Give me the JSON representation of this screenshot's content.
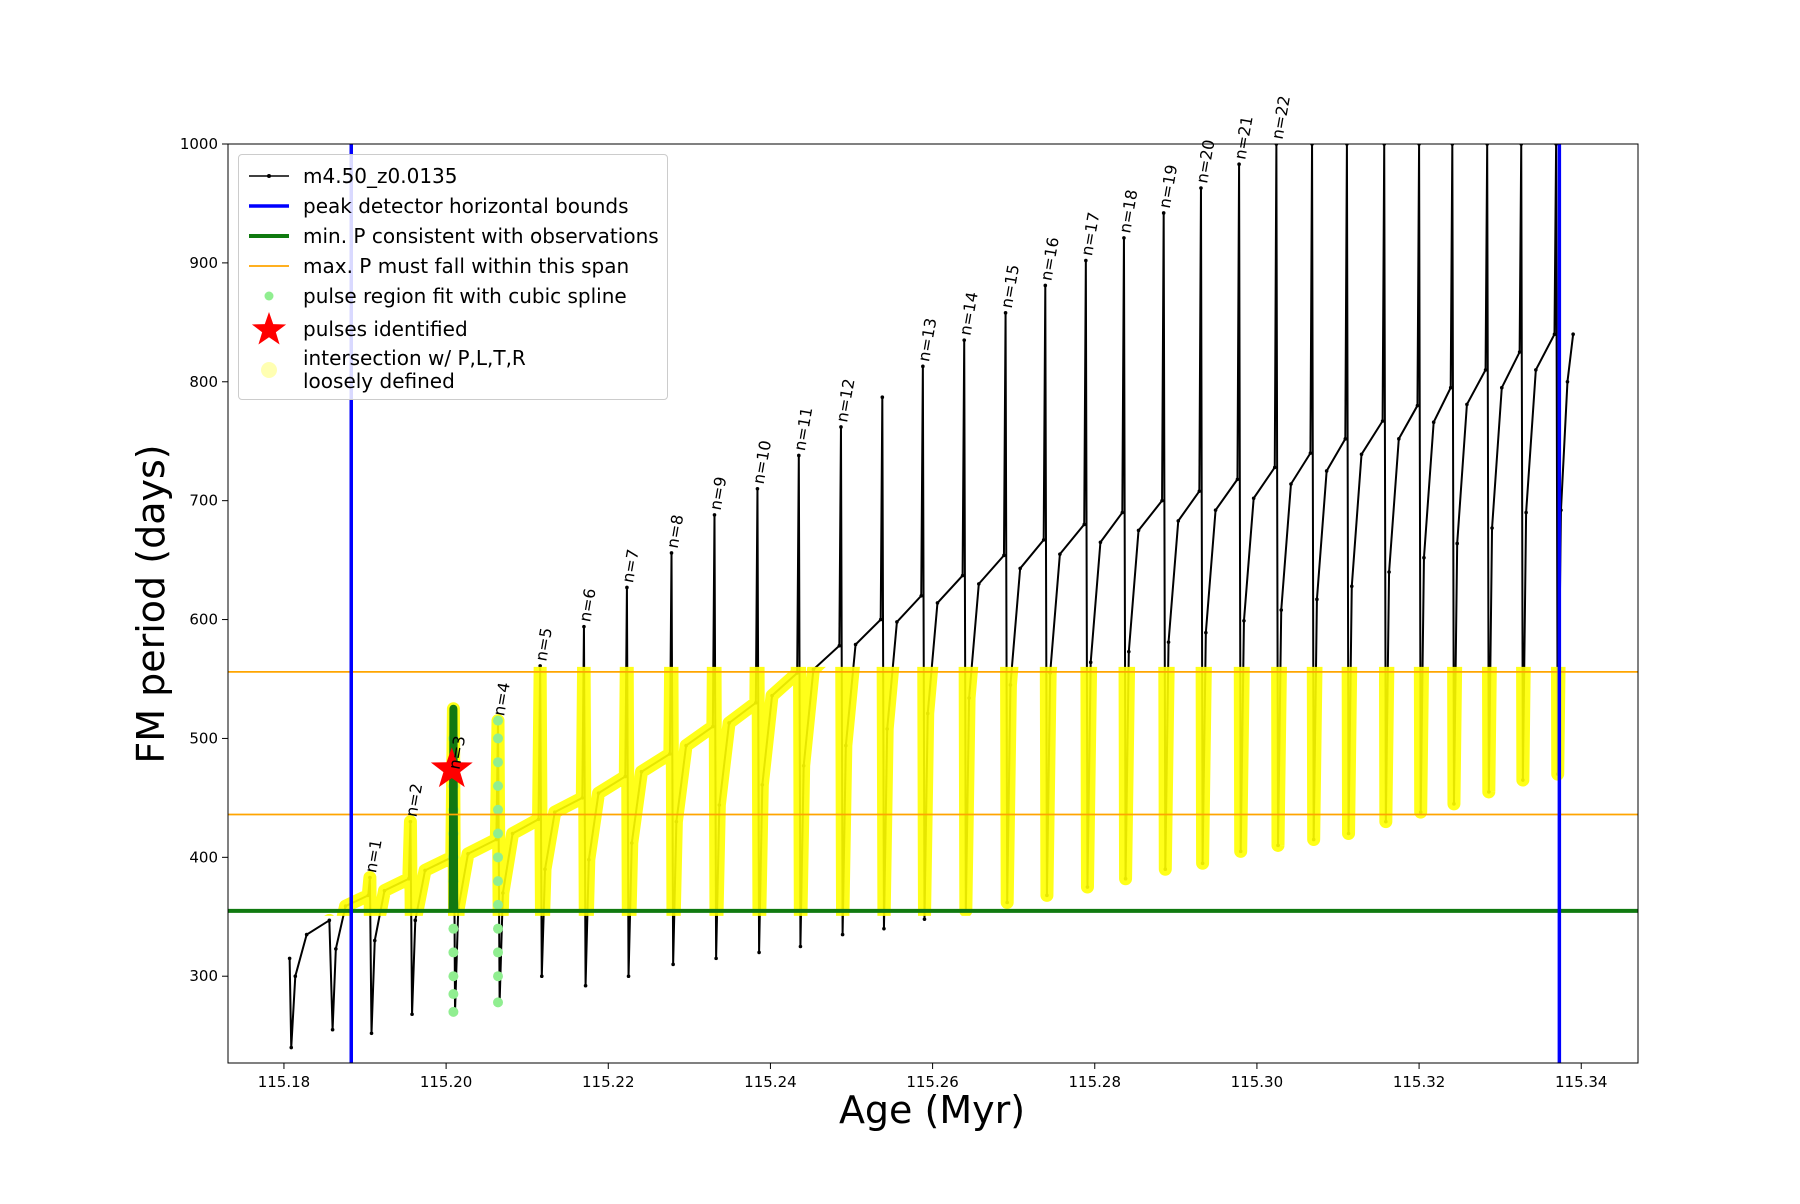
{
  "chart_data": {
    "type": "line",
    "xlabel": "Age (Myr)",
    "ylabel": "FM period (days)",
    "xlim": [
      115.1731,
      115.347
    ],
    "ylim": [
      227,
      1000
    ],
    "xticks": [
      115.18,
      {
        "value": 115.2,
        "label": "115.20"
      },
      115.22,
      115.24,
      115.26,
      115.28,
      {
        "value": 115.3,
        "label": "115.30"
      },
      115.32,
      115.34
    ],
    "yticks": [
      300,
      400,
      500,
      600,
      700,
      800,
      900,
      1000
    ],
    "grid": false,
    "legend": "upper left",
    "x": [
      115.1807,
      115.1809,
      115.1814,
      115.1828,
      115.1856,
      115.186,
      115.1864,
      115.1876,
      115.1904,
      115.1906,
      115.1908,
      115.1912,
      115.1924,
      115.1954,
      115.1956,
      115.1958,
      115.1962,
      115.1974,
      115.2007,
      115.2009,
      115.2011,
      115.2015,
      115.2027,
      115.2062,
      115.2064,
      115.2066,
      115.207,
      115.2082,
      115.2114,
      115.2116,
      115.2118,
      115.2122,
      115.2134,
      115.2168,
      115.217,
      115.2172,
      115.2176,
      115.2188,
      115.2221,
      115.2223,
      115.2225,
      115.2229,
      115.2241,
      115.2276,
      115.2278,
      115.228,
      115.2284,
      115.2296,
      115.2329,
      115.2331,
      115.2333,
      115.2337,
      115.2349,
      115.2382,
      115.2384,
      115.2386,
      115.239,
      115.2402,
      115.2433,
      115.2435,
      115.2437,
      115.2441,
      115.2453,
      115.2485,
      115.2487,
      115.2489,
      115.2493,
      115.2505,
      115.2536,
      115.2538,
      115.254,
      115.2544,
      115.2556,
      115.2586,
      115.2588,
      115.259,
      115.2594,
      115.2606,
      115.2637,
      115.2639,
      115.2641,
      115.2645,
      115.2657,
      115.2688,
      115.269,
      115.2692,
      115.2696,
      115.2708,
      115.2737,
      115.2739,
      115.2741,
      115.2745,
      115.2757,
      115.2787,
      115.2789,
      115.2791,
      115.2795,
      115.2807,
      115.2834,
      115.2836,
      115.2838,
      115.2842,
      115.2854,
      115.2883,
      115.2885,
      115.2887,
      115.2891,
      115.2903,
      115.2929,
      115.2931,
      115.2933,
      115.2937,
      115.2949,
      115.2976,
      115.2978,
      115.298,
      115.2984,
      115.2996,
      115.3022,
      115.3024,
      115.3026,
      115.303,
      115.3042,
      115.3066,
      115.3068,
      115.307,
      115.3074,
      115.3086,
      115.3109,
      115.3111,
      115.3113,
      115.3117,
      115.3129,
      115.3155,
      115.3157,
      115.3159,
      115.3163,
      115.3175,
      115.3198,
      115.32,
      115.3202,
      115.3206,
      115.3218,
      115.3239,
      115.3241,
      115.3243,
      115.3247,
      115.3259,
      115.3282,
      115.3284,
      115.3286,
      115.329,
      115.3302,
      115.3324,
      115.3326,
      115.3328,
      115.3332,
      115.3344,
      115.3367,
      115.3369,
      115.3371,
      115.3375,
      115.3383,
      115.339
    ],
    "series": [
      {
        "name": "m4.50_z0.0135",
        "color": "#000000",
        "values": [
          315,
          240,
          300,
          335,
          347,
          255,
          323,
          359,
          368,
          383,
          252,
          330,
          372,
          382,
          430,
          268,
          347,
          389,
          400,
          525,
          270,
          357,
          403,
          415,
          515,
          278,
          370,
          420,
          432,
          561,
          300,
          390,
          438,
          450,
          594,
          292,
          398,
          454,
          468,
          627,
          300,
          412,
          472,
          487,
          656,
          310,
          430,
          494,
          510,
          688,
          315,
          444,
          513,
          530,
          710,
          320,
          461,
          536,
          555,
          738,
          325,
          477,
          558,
          578,
          762,
          335,
          494,
          579,
          600,
          787,
          340,
          508,
          598,
          620,
          813,
          348,
          521,
          614,
          637,
          835,
          355,
          534,
          630,
          654,
          858,
          362,
          545,
          643,
          667,
          881,
          368,
          555,
          655,
          680,
          902,
          375,
          564,
          665,
          690,
          921,
          382,
          573,
          675,
          700,
          942,
          390,
          581,
          683,
          708,
          963,
          395,
          589,
          692,
          718,
          983,
          405,
          599,
          702,
          728,
          1000,
          410,
          608,
          714,
          740,
          1000,
          415,
          617,
          725,
          752,
          1000,
          420,
          628,
          739,
          767,
          1000,
          430,
          640,
          752,
          780,
          1000,
          438,
          652,
          766,
          795,
          1000,
          445,
          664,
          781,
          810,
          1000,
          455,
          677,
          795,
          825,
          1000,
          465,
          690,
          810,
          840,
          1000,
          470,
          692,
          800,
          840
        ]
      }
    ],
    "vlines": {
      "name": "peak detector horizontal bounds",
      "color": "#0000ff",
      "values": [
        115.1883,
        115.3373
      ]
    },
    "hlines": [
      {
        "name": "min. P consistent with observations",
        "color": "#107a10",
        "values": [
          355
        ]
      },
      {
        "name": "max. P must fall within this span",
        "color": "#ffa500",
        "values": [
          436,
          556
        ]
      }
    ],
    "pulse_region": {
      "name": "pulse region fit with cubic spline",
      "color": "#90ee90",
      "x": [
        115.2009,
        115.2009,
        115.2009,
        115.2009,
        115.2009,
        115.2009,
        115.2009,
        115.2009,
        115.2009,
        115.2009,
        115.2009,
        115.2009,
        115.2009,
        115.2064,
        115.2064,
        115.2064,
        115.2064,
        115.2064,
        115.2064,
        115.2064,
        115.2064,
        115.2064,
        115.2064,
        115.2064,
        115.2064,
        115.2064
      ],
      "values": [
        270,
        285,
        300,
        320,
        340,
        360,
        380,
        400,
        420,
        440,
        460,
        480,
        500,
        278,
        300,
        320,
        340,
        360,
        380,
        400,
        420,
        440,
        460,
        480,
        500,
        515
      ]
    },
    "pulse_fit": {
      "color": "#127812",
      "x": [
        115.2008,
        115.2009,
        115.201
      ],
      "values": [
        355,
        525,
        355
      ]
    },
    "pulses": {
      "name": "pulses identified",
      "color": "#ff0000",
      "x": [
        115.2007
      ],
      "values": [
        474
      ]
    },
    "highlight": {
      "name": "intersection w/ P,L,T,R\nloosely defined",
      "color": "#ffff00"
    },
    "annotations": [
      {
        "text": "n=1",
        "x": 115.1906,
        "y": 383
      },
      {
        "text": "n=2",
        "x": 115.1956,
        "y": 430
      },
      {
        "text": "n=3",
        "x": 115.2009,
        "y": 470
      },
      {
        "text": "n=4",
        "x": 115.2064,
        "y": 515
      },
      {
        "text": "n=5",
        "x": 115.2116,
        "y": 561
      },
      {
        "text": "n=6",
        "x": 115.217,
        "y": 594
      },
      {
        "text": "n=7",
        "x": 115.2223,
        "y": 627
      },
      {
        "text": "n=8",
        "x": 115.2278,
        "y": 656
      },
      {
        "text": "n=9",
        "x": 115.2331,
        "y": 688
      },
      {
        "text": "n=10",
        "x": 115.2384,
        "y": 710
      },
      {
        "text": "n=11",
        "x": 115.2435,
        "y": 738
      },
      {
        "text": "n=12",
        "x": 115.2487,
        "y": 762
      },
      {
        "text": "n=13",
        "x": 115.2588,
        "y": 813
      },
      {
        "text": "n=14",
        "x": 115.2639,
        "y": 835
      },
      {
        "text": "n=15",
        "x": 115.269,
        "y": 858
      },
      {
        "text": "n=16",
        "x": 115.2739,
        "y": 881
      },
      {
        "text": "n=17",
        "x": 115.2789,
        "y": 902
      },
      {
        "text": "n=18",
        "x": 115.2836,
        "y": 921
      },
      {
        "text": "n=19",
        "x": 115.2885,
        "y": 942
      },
      {
        "text": "n=20",
        "x": 115.2931,
        "y": 963
      },
      {
        "text": "n=21",
        "x": 115.2978,
        "y": 983
      },
      {
        "text": "n=22",
        "x": 115.3024,
        "y": 1000
      }
    ]
  }
}
